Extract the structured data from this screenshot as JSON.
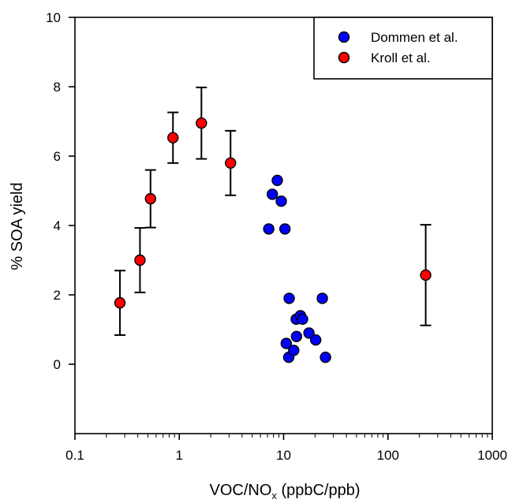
{
  "chart_data": {
    "type": "scatter",
    "xscale": "log",
    "xlim": [
      0.1,
      1000
    ],
    "ylim": [
      -2,
      10
    ],
    "xticks": [
      {
        "value": 0.1,
        "label": "0.1"
      },
      {
        "value": 1,
        "label": "1"
      },
      {
        "value": 10,
        "label": "10"
      },
      {
        "value": 100,
        "label": "100"
      },
      {
        "value": 1000,
        "label": "1000"
      }
    ],
    "yticks": [
      {
        "value": 0,
        "label": "0"
      },
      {
        "value": 2,
        "label": "2"
      },
      {
        "value": 4,
        "label": "4"
      },
      {
        "value": 6,
        "label": "6"
      },
      {
        "value": 8,
        "label": "8"
      },
      {
        "value": 10,
        "label": "10"
      }
    ],
    "xlabel_main": "VOC/NO",
    "xlabel_sub": "x",
    "xlabel_rest": " (ppbC/ppb)",
    "ylabel": "% SOA yield",
    "grid": false,
    "legend_position": "top-right",
    "series": [
      {
        "name": "Dommen et al.",
        "color": "#0000ff",
        "points": [
          {
            "x": 7.2,
            "y": 3.9
          },
          {
            "x": 7.8,
            "y": 4.9
          },
          {
            "x": 8.7,
            "y": 5.3
          },
          {
            "x": 9.5,
            "y": 4.7
          },
          {
            "x": 10.3,
            "y": 3.9
          },
          {
            "x": 11.3,
            "y": 1.9
          },
          {
            "x": 13.2,
            "y": 1.3
          },
          {
            "x": 14.5,
            "y": 1.4
          },
          {
            "x": 15.2,
            "y": 1.3
          },
          {
            "x": 10.6,
            "y": 0.6
          },
          {
            "x": 11.2,
            "y": 0.2
          },
          {
            "x": 12.5,
            "y": 0.4
          },
          {
            "x": 13.3,
            "y": 0.8
          },
          {
            "x": 17.5,
            "y": 0.9
          },
          {
            "x": 20.3,
            "y": 0.7
          },
          {
            "x": 23.5,
            "y": 1.9
          },
          {
            "x": 25.2,
            "y": 0.2
          }
        ]
      },
      {
        "name": "Kroll et al.",
        "color": "#ff0000",
        "points": [
          {
            "x": 0.27,
            "y": 1.77,
            "err_low": 0.93,
            "err_high": 0.93
          },
          {
            "x": 0.42,
            "y": 3.0,
            "err_low": 0.93,
            "err_high": 0.93
          },
          {
            "x": 0.53,
            "y": 4.77,
            "err_low": 0.83,
            "err_high": 0.83
          },
          {
            "x": 0.87,
            "y": 6.53,
            "err_low": 0.73,
            "err_high": 0.73
          },
          {
            "x": 1.63,
            "y": 6.95,
            "err_low": 1.03,
            "err_high": 1.03
          },
          {
            "x": 3.1,
            "y": 5.8,
            "err_low": 0.93,
            "err_high": 0.93
          },
          {
            "x": 230,
            "y": 2.57,
            "err_low": 1.45,
            "err_high": 1.45
          }
        ]
      }
    ]
  }
}
